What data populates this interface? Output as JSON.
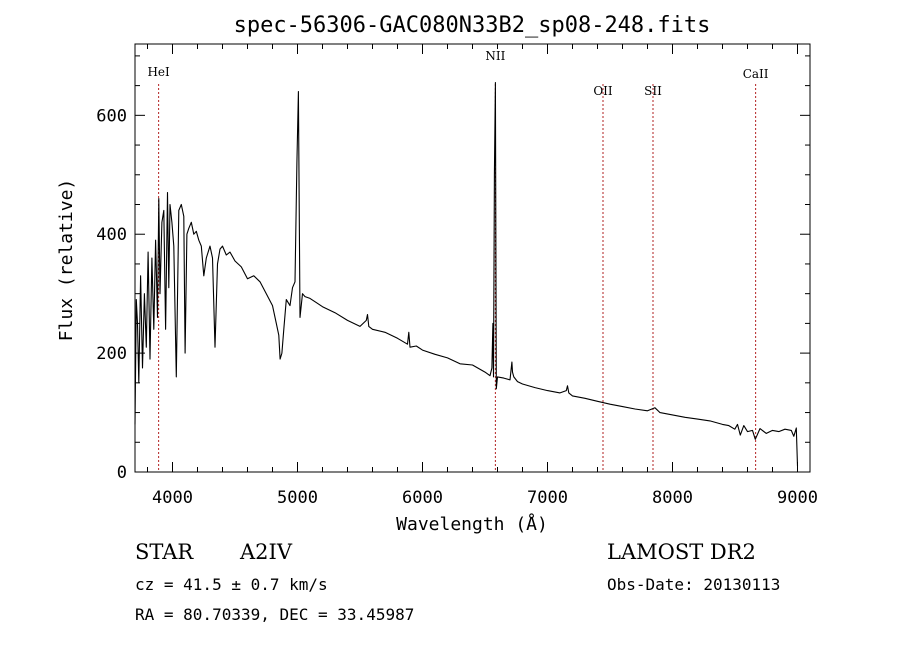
{
  "chart_data": {
    "type": "line",
    "title": "spec-56306-GAC080N33B2_sp08-248.fits",
    "xlabel": "Wavelength (Å)",
    "ylabel": "Flux (relative)",
    "xlim": [
      3700,
      9100
    ],
    "ylim": [
      0,
      720
    ],
    "xticks": [
      4000,
      5000,
      6000,
      7000,
      8000,
      9000
    ],
    "xtick_labels": [
      "4000",
      "5000",
      "6000",
      "7000",
      "8000",
      "9000"
    ],
    "yticks": [
      0,
      200,
      400,
      600
    ],
    "ytick_labels": [
      "0",
      "200",
      "400",
      "600"
    ],
    "grid": false,
    "lines": [
      {
        "label": "HeI",
        "x": 3889
      },
      {
        "label": "NII",
        "x": 6583
      },
      {
        "label": "OII",
        "x": 7444
      },
      {
        "label": "SII",
        "x": 7844
      },
      {
        "label": "CaII",
        "x": 8665
      }
    ],
    "line_color": "#b22222",
    "series_color": "#000000",
    "series": [
      {
        "x": [
          3700,
          3710,
          3720,
          3730,
          3745,
          3760,
          3775,
          3790,
          3805,
          3820,
          3835,
          3850,
          3865,
          3880,
          3890,
          3900,
          3915,
          3930,
          3945,
          3960,
          3970,
          3980,
          3995,
          4010,
          4030,
          4050,
          4070,
          4090,
          4101,
          4115,
          4130,
          4150,
          4170,
          4190,
          4210,
          4230,
          4250,
          4270,
          4300,
          4320,
          4340,
          4360,
          4380,
          4400,
          4430,
          4460,
          4500,
          4550,
          4600,
          4650,
          4700,
          4750,
          4800,
          4830,
          4850,
          4861,
          4875,
          4890,
          4910,
          4940,
          4960,
          4980,
          4995,
          5007,
          5020,
          5040,
          5060,
          5100,
          5150,
          5200,
          5300,
          5400,
          5500,
          5550,
          5560,
          5570,
          5600,
          5700,
          5800,
          5880,
          5890,
          5900,
          5950,
          6000,
          6100,
          6200,
          6300,
          6400,
          6500,
          6540,
          6555,
          6563,
          6568,
          6575,
          6583,
          6590,
          6600,
          6650,
          6700,
          6715,
          6720,
          6730,
          6760,
          6800,
          6900,
          7000,
          7100,
          7150,
          7160,
          7170,
          7200,
          7300,
          7400,
          7500,
          7600,
          7700,
          7800,
          7860,
          7900,
          8000,
          8100,
          8200,
          8300,
          8400,
          8450,
          8498,
          8520,
          8542,
          8570,
          8600,
          8640,
          8662,
          8700,
          8750,
          8800,
          8850,
          8900,
          8950,
          8970,
          8990,
          9000
        ],
        "y": [
          80,
          290,
          250,
          150,
          330,
          175,
          300,
          210,
          370,
          190,
          360,
          240,
          390,
          260,
          460,
          300,
          420,
          440,
          240,
          470,
          310,
          450,
          420,
          380,
          160,
          440,
          450,
          430,
          200,
          400,
          410,
          420,
          400,
          405,
          390,
          380,
          330,
          360,
          380,
          360,
          210,
          350,
          375,
          380,
          365,
          370,
          355,
          345,
          325,
          330,
          320,
          300,
          280,
          250,
          230,
          190,
          200,
          240,
          290,
          280,
          310,
          320,
          520,
          640,
          260,
          300,
          295,
          292,
          285,
          278,
          268,
          255,
          245,
          255,
          265,
          245,
          240,
          235,
          225,
          215,
          235,
          210,
          212,
          205,
          198,
          192,
          182,
          180,
          168,
          162,
          175,
          250,
          160,
          500,
          655,
          140,
          160,
          158,
          155,
          185,
          168,
          160,
          152,
          148,
          142,
          137,
          133,
          137,
          145,
          133,
          128,
          124,
          119,
          114,
          110,
          106,
          103,
          108,
          100,
          96,
          92,
          89,
          86,
          80,
          78,
          72,
          80,
          62,
          78,
          68,
          70,
          55,
          73,
          65,
          70,
          68,
          72,
          70,
          60,
          74,
          10
        ]
      }
    ]
  },
  "footer": {
    "object_class": "STAR",
    "subclass": "A2IV",
    "survey": "LAMOST DR2",
    "cz": "cz = 41.5 ± 0.7 km/s",
    "obs_date": "Obs-Date: 20130113",
    "coords": "RA =  80.70339, DEC =  33.45987"
  }
}
